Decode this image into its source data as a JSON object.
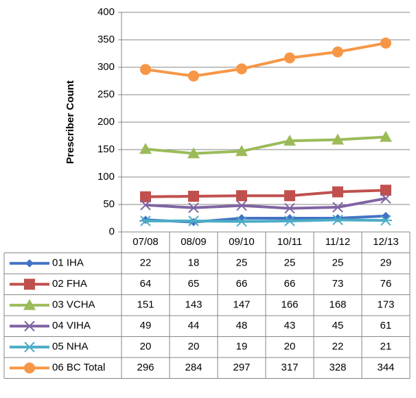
{
  "chart_data": {
    "type": "line",
    "ylabel": "Prescriber Count",
    "categories": [
      "07/08",
      "08/09",
      "09/10",
      "10/11",
      "11/12",
      "12/13"
    ],
    "series": [
      {
        "name": "01 IHA",
        "color": "#4472c4",
        "marker": "diamond",
        "values": [
          22,
          18,
          25,
          25,
          25,
          29
        ]
      },
      {
        "name": "02 FHA",
        "color": "#c0504d",
        "marker": "square",
        "values": [
          64,
          65,
          66,
          66,
          73,
          76
        ]
      },
      {
        "name": "03 VCHA",
        "color": "#9bbb59",
        "marker": "triangle",
        "values": [
          151,
          143,
          147,
          166,
          168,
          173
        ]
      },
      {
        "name": "04 VIHA",
        "color": "#8064a2",
        "marker": "x",
        "values": [
          49,
          44,
          48,
          43,
          45,
          61
        ]
      },
      {
        "name": "05 NHA",
        "color": "#4bacc6",
        "marker": "star",
        "values": [
          20,
          20,
          19,
          20,
          22,
          21
        ]
      },
      {
        "name": "06 BC Total",
        "color": "#f79646",
        "marker": "circle",
        "values": [
          296,
          284,
          297,
          317,
          328,
          344
        ]
      }
    ],
    "ylim": [
      0,
      400
    ],
    "yticks": [
      0,
      50,
      100,
      150,
      200,
      250,
      300,
      350,
      400
    ],
    "grid": true
  }
}
